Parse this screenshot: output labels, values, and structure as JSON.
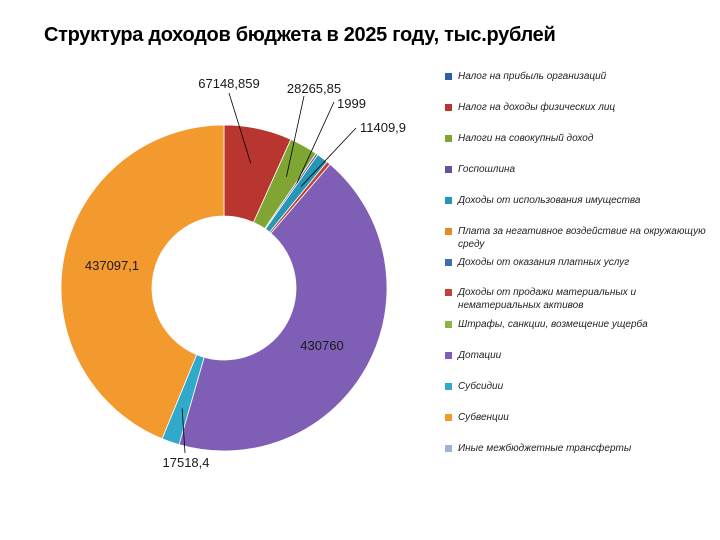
{
  "title": "Структура доходов бюджета в 2025 году, тыс.рублей",
  "chart_data": {
    "type": "pie",
    "donut": true,
    "title": "Структура доходов бюджета в 2025 году, тыс.рублей",
    "legend_position": "right",
    "series": [
      {
        "name": "Налог на прибыль организаций",
        "value": 0,
        "label": "",
        "color": "#2E5EA8"
      },
      {
        "name": "Налог на доходы физических лиц",
        "value": 67148.859,
        "label": "67148,859",
        "color": "#B8362F"
      },
      {
        "name": "Налоги на совокупный доход",
        "value": 28265.85,
        "label": "28265,85",
        "color": "#7FA632"
      },
      {
        "name": "Госпошлина",
        "value": 1999,
        "label": "1999",
        "color": "#6B4E9B"
      },
      {
        "name": "Доходы от использования имущества",
        "value": 11409.9,
        "label": "11409,9",
        "color": "#2596B5"
      },
      {
        "name": "Плата за негативное воздействие на окружающую среду",
        "value": 0,
        "label": "",
        "color": "#E88A22"
      },
      {
        "name": "Доходы от оказания платных услуг",
        "value": 0,
        "label": "",
        "color": "#3E6DB0"
      },
      {
        "name": "Доходы от продажи материальных и нематериальных активов",
        "value": 3800,
        "label": "",
        "color": "#C0413A"
      },
      {
        "name": "Штрафы, санкции, возмещение ущерба",
        "value": 0,
        "label": "",
        "color": "#8DB246"
      },
      {
        "name": "Дотации",
        "value": 430760,
        "label": "430760",
        "color": "#7E5FB5"
      },
      {
        "name": "Субсидии",
        "value": 17518.4,
        "label": "17518,4",
        "color": "#31A9CB"
      },
      {
        "name": "Субвенции",
        "value": 437097.1,
        "label": "437097,1",
        "color": "#F39A2E"
      },
      {
        "name": "Иные межбюджетные трансферты",
        "value": 0,
        "label": "",
        "color": "#9DB3D6"
      }
    ]
  }
}
